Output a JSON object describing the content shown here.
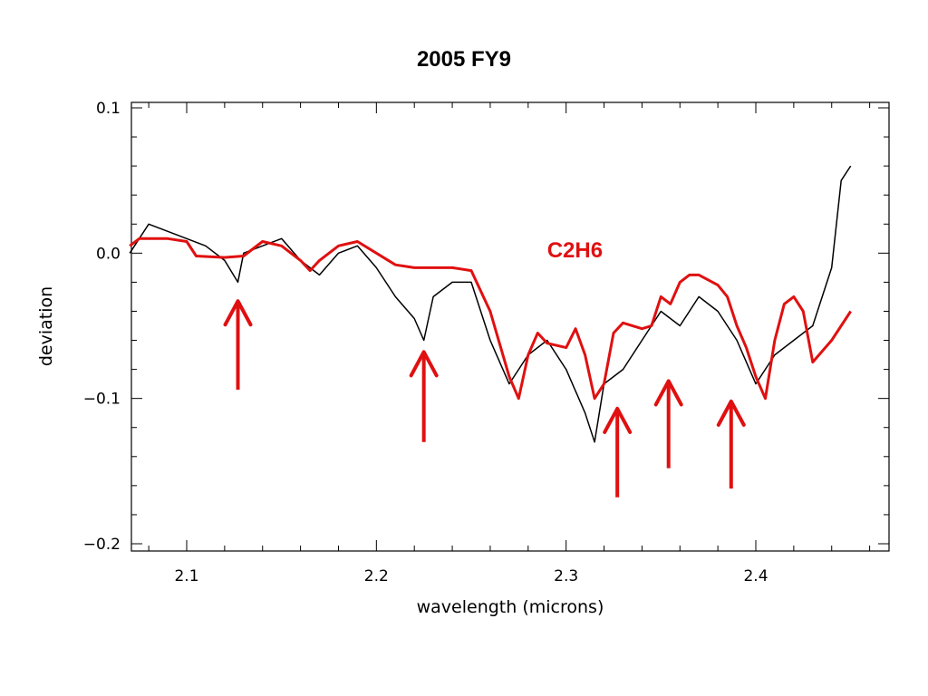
{
  "chart_data": {
    "type": "line",
    "title": "2005 FY9",
    "xlabel": "wavelength (microns)",
    "ylabel": "deviation",
    "xlim": [
      2.07,
      2.46
    ],
    "ylim": [
      -0.2,
      0.1
    ],
    "xticks": [
      2.1,
      2.2,
      2.3,
      2.4
    ],
    "xtick_labels": [
      "2.1",
      "2.2",
      "2.3",
      "2.4"
    ],
    "yticks": [
      0.1,
      0.0,
      -0.1,
      -0.2
    ],
    "ytick_labels": [
      "0.1",
      "0.0",
      "−0.1",
      "−0.2"
    ],
    "grid": false,
    "series": [
      {
        "color": "#000000",
        "x": [
          2.07,
          2.08,
          2.09,
          2.1,
          2.11,
          2.12,
          2.127,
          2.13,
          2.14,
          2.15,
          2.16,
          2.17,
          2.18,
          2.19,
          2.2,
          2.21,
          2.22,
          2.225,
          2.23,
          2.24,
          2.25,
          2.26,
          2.27,
          2.28,
          2.29,
          2.3,
          2.31,
          2.315,
          2.32,
          2.33,
          2.34,
          2.35,
          2.36,
          2.37,
          2.38,
          2.39,
          2.4,
          2.41,
          2.42,
          2.43,
          2.44,
          2.445,
          2.45
        ],
        "y": [
          0.0,
          0.02,
          0.015,
          0.01,
          0.005,
          -0.005,
          -0.02,
          0.0,
          0.005,
          0.01,
          -0.005,
          -0.015,
          0.0,
          0.005,
          -0.01,
          -0.03,
          -0.045,
          -0.06,
          -0.03,
          -0.02,
          -0.02,
          -0.06,
          -0.09,
          -0.07,
          -0.06,
          -0.08,
          -0.11,
          -0.13,
          -0.09,
          -0.08,
          -0.06,
          -0.04,
          -0.05,
          -0.03,
          -0.04,
          -0.06,
          -0.09,
          -0.07,
          -0.06,
          -0.05,
          -0.01,
          0.05,
          0.06
        ]
      },
      {
        "color": "#e01010",
        "x": [
          2.07,
          2.075,
          2.09,
          2.1,
          2.105,
          2.12,
          2.13,
          2.14,
          2.15,
          2.16,
          2.165,
          2.17,
          2.18,
          2.19,
          2.2,
          2.21,
          2.22,
          2.23,
          2.24,
          2.25,
          2.26,
          2.27,
          2.275,
          2.28,
          2.285,
          2.29,
          2.3,
          2.305,
          2.31,
          2.315,
          2.32,
          2.325,
          2.33,
          2.34,
          2.345,
          2.35,
          2.355,
          2.36,
          2.365,
          2.37,
          2.38,
          2.385,
          2.39,
          2.395,
          2.4,
          2.405,
          2.41,
          2.415,
          2.42,
          2.425,
          2.43,
          2.44,
          2.45
        ],
        "y": [
          0.005,
          0.01,
          0.01,
          0.008,
          -0.002,
          -0.003,
          -0.002,
          0.008,
          0.005,
          -0.005,
          -0.012,
          -0.005,
          0.005,
          0.008,
          0.0,
          -0.008,
          -0.01,
          -0.01,
          -0.01,
          -0.012,
          -0.04,
          -0.085,
          -0.1,
          -0.07,
          -0.055,
          -0.062,
          -0.065,
          -0.052,
          -0.07,
          -0.1,
          -0.09,
          -0.055,
          -0.048,
          -0.052,
          -0.05,
          -0.03,
          -0.035,
          -0.02,
          -0.015,
          -0.015,
          -0.022,
          -0.03,
          -0.05,
          -0.065,
          -0.085,
          -0.1,
          -0.06,
          -0.035,
          -0.03,
          -0.04,
          -0.075,
          -0.06,
          -0.04
        ]
      }
    ],
    "annotations": [
      {
        "text": "C2H6",
        "x": 2.29,
        "y": -0.003,
        "color": "#e01010"
      }
    ],
    "arrows": [
      {
        "x": 2.127,
        "tip_y": -0.033,
        "tail_y": -0.094,
        "color": "#e01010"
      },
      {
        "x": 2.225,
        "tip_y": -0.068,
        "tail_y": -0.13,
        "color": "#e01010"
      },
      {
        "x": 2.327,
        "tip_y": -0.107,
        "tail_y": -0.168,
        "color": "#e01010"
      },
      {
        "x": 2.354,
        "tip_y": -0.088,
        "tail_y": -0.148,
        "color": "#e01010"
      },
      {
        "x": 2.387,
        "tip_y": -0.102,
        "tail_y": -0.162,
        "color": "#e01010"
      }
    ]
  }
}
